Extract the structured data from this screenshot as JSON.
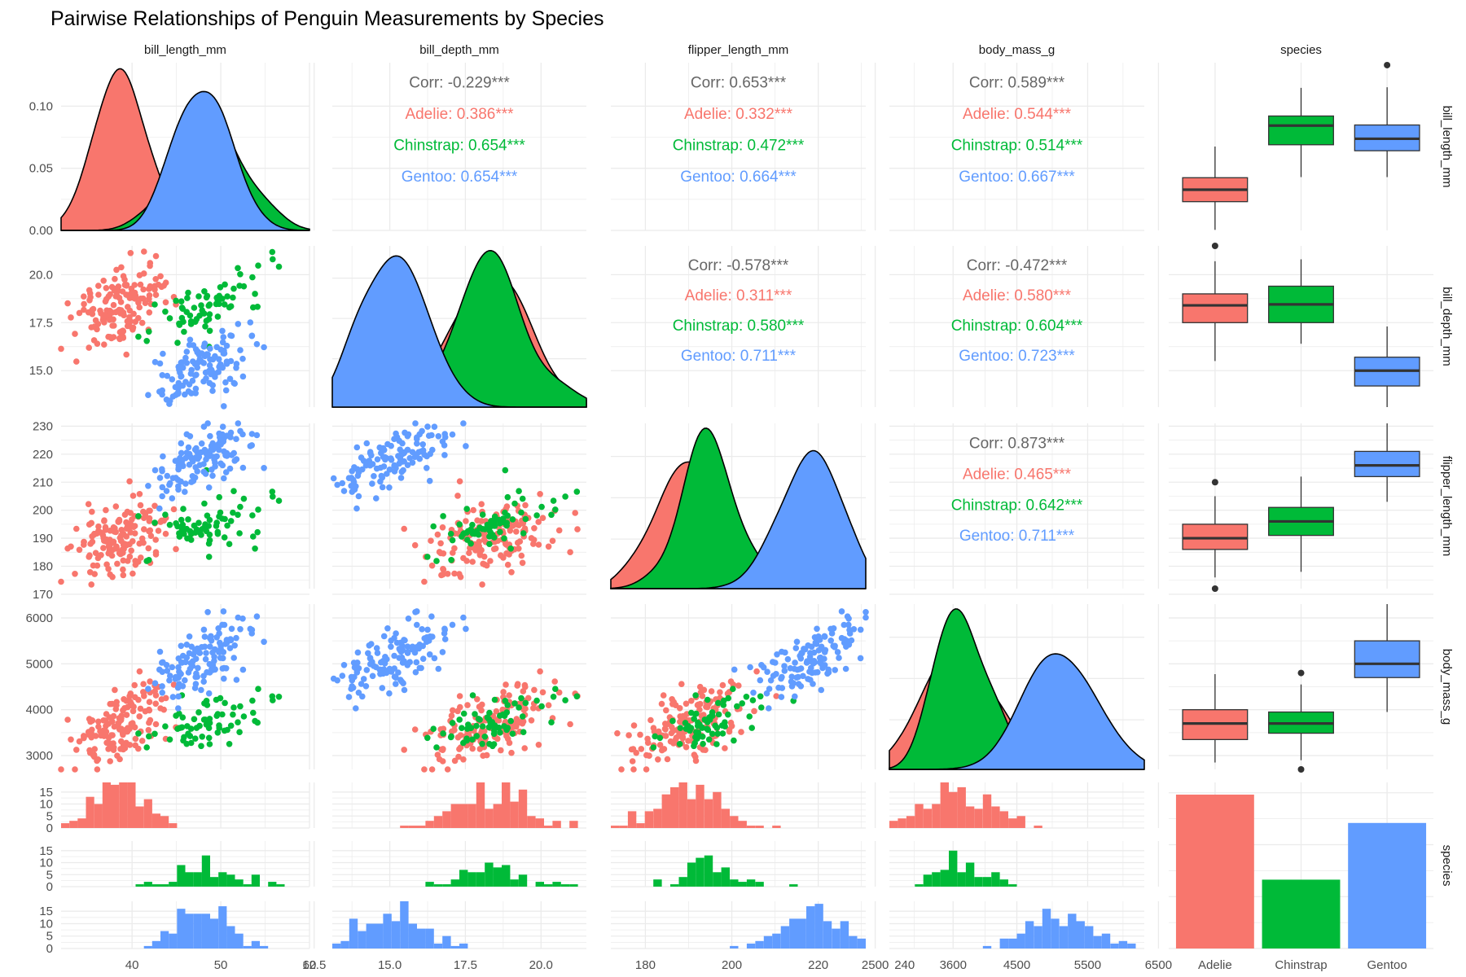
{
  "title": "Pairwise Relationships of Penguin Measurements by Species",
  "variables": [
    "bill_length_mm",
    "bill_depth_mm",
    "flipper_length_mm",
    "body_mass_g",
    "species"
  ],
  "species": [
    "Adelie",
    "Chinstrap",
    "Gentoo"
  ],
  "colors": {
    "Adelie": "#F8766D",
    "Chinstrap": "#00BA38",
    "Gentoo": "#619CFF"
  },
  "chart_data": {
    "type": "scatter",
    "title": "Pairwise Relationships of Penguin Measurements by Species",
    "panels": "pairs-matrix",
    "numeric_vars": [
      "bill_length_mm",
      "bill_depth_mm",
      "flipper_length_mm",
      "body_mass_g"
    ],
    "axis_ranges": {
      "bill_length_mm": [
        32,
        60
      ],
      "bill_depth_mm": [
        13.1,
        21.5
      ],
      "flipper_length_mm": [
        172,
        231
      ],
      "body_mass_g": [
        2700,
        6300
      ]
    },
    "diag_density_axis": {
      "ylim": [
        0,
        0.135
      ],
      "ticks": [
        0.0,
        0.05,
        0.1
      ],
      "tick_labels": [
        "0.00",
        "0.05",
        "0.10"
      ]
    },
    "left_ticks": {
      "bill_depth_mm": {
        "values": [
          15,
          17.5,
          20
        ],
        "labels": [
          "15.0",
          "17.5",
          "20.0"
        ]
      },
      "flipper_length_mm": {
        "values": [
          170,
          180,
          190,
          200,
          210,
          220,
          230
        ],
        "labels": [
          "170",
          "180",
          "190",
          "200",
          "210",
          "220",
          "230"
        ]
      },
      "body_mass_g": {
        "values": [
          3000,
          4000,
          5000,
          6000
        ],
        "labels": [
          "3000",
          "4000",
          "5000",
          "6000"
        ]
      }
    },
    "bottom_ticks": {
      "bill_length_mm": {
        "values": [
          40,
          50,
          60
        ],
        "labels": [
          "40",
          "50",
          "60"
        ]
      },
      "bill_depth_mm": {
        "values": [
          12.5,
          15,
          17.5,
          20
        ],
        "labels": [
          "12.5",
          "15.0",
          "17.5",
          "20.0"
        ]
      },
      "flipper_length_mm": {
        "values": [
          180,
          200,
          220,
          240
        ],
        "labels": [
          "180",
          "200",
          "220",
          "240"
        ]
      },
      "body_mass_g": {
        "values": [
          2500,
          3600,
          4500,
          5500,
          6500
        ],
        "labels": [
          "2500",
          "3600",
          "4500",
          "5500",
          "6500"
        ]
      }
    },
    "hist_ticks": {
      "values": [
        0,
        5,
        10,
        15
      ],
      "labels": [
        "0",
        "5",
        "10",
        "15"
      ]
    },
    "species_bar": {
      "categories": [
        "Adelie",
        "Chinstrap",
        "Gentoo"
      ],
      "values": [
        152,
        68,
        124
      ],
      "ylim": [
        0,
        160
      ]
    },
    "correlations": [
      {
        "row": "bill_length_mm",
        "col": "bill_depth_mm",
        "overall": "Corr: -0.229***",
        "Adelie": "Adelie: 0.386***",
        "Chinstrap": "Chinstrap: 0.654***",
        "Gentoo": "Gentoo: 0.654***"
      },
      {
        "row": "bill_length_mm",
        "col": "flipper_length_mm",
        "overall": "Corr: 0.653***",
        "Adelie": "Adelie: 0.332***",
        "Chinstrap": "Chinstrap: 0.472***",
        "Gentoo": "Gentoo: 0.664***"
      },
      {
        "row": "bill_length_mm",
        "col": "body_mass_g",
        "overall": "Corr: 0.589***",
        "Adelie": "Adelie: 0.544***",
        "Chinstrap": "Chinstrap: 0.514***",
        "Gentoo": "Gentoo: 0.667***"
      },
      {
        "row": "bill_depth_mm",
        "col": "flipper_length_mm",
        "overall": "Corr: -0.578***",
        "Adelie": "Adelie: 0.311***",
        "Chinstrap": "Chinstrap: 0.580***",
        "Gentoo": "Gentoo: 0.711***"
      },
      {
        "row": "bill_depth_mm",
        "col": "body_mass_g",
        "overall": "Corr: -0.472***",
        "Adelie": "Adelie: 0.580***",
        "Chinstrap": "Chinstrap: 0.604***",
        "Gentoo": "Gentoo: 0.723***"
      },
      {
        "row": "flipper_length_mm",
        "col": "body_mass_g",
        "overall": "Corr: 0.873***",
        "Adelie": "Adelie: 0.465***",
        "Chinstrap": "Chinstrap: 0.642***",
        "Gentoo": "Gentoo: 0.711***"
      }
    ],
    "boxplots": {
      "bill_length_mm": {
        "Adelie": {
          "min": 32.1,
          "q1": 36.8,
          "median": 38.8,
          "q3": 40.8,
          "max": 46.0,
          "outliers": []
        },
        "Chinstrap": {
          "min": 40.9,
          "q1": 46.3,
          "median": 49.5,
          "q3": 51.1,
          "max": 55.8,
          "outliers": []
        },
        "Gentoo": {
          "min": 40.9,
          "q1": 45.3,
          "median": 47.3,
          "q3": 49.6,
          "max": 55.9,
          "outliers": [
            59.6
          ]
        }
      },
      "bill_depth_mm": {
        "Adelie": {
          "min": 15.5,
          "q1": 17.5,
          "median": 18.4,
          "q3": 19.0,
          "max": 20.7,
          "outliers": [
            21.5
          ]
        },
        "Chinstrap": {
          "min": 16.4,
          "q1": 17.5,
          "median": 18.45,
          "q3": 19.4,
          "max": 20.8,
          "outliers": []
        },
        "Gentoo": {
          "min": 13.1,
          "q1": 14.2,
          "median": 15.0,
          "q3": 15.7,
          "max": 17.3,
          "outliers": []
        }
      },
      "flipper_length_mm": {
        "Adelie": {
          "min": 176,
          "q1": 186,
          "median": 190,
          "q3": 195,
          "max": 205,
          "outliers": [
            172,
            210
          ]
        },
        "Chinstrap": {
          "min": 178,
          "q1": 191,
          "median": 196,
          "q3": 201,
          "max": 212,
          "outliers": []
        },
        "Gentoo": {
          "min": 203,
          "q1": 212,
          "median": 216,
          "q3": 221,
          "max": 231,
          "outliers": []
        }
      },
      "body_mass_g": {
        "Adelie": {
          "min": 2850,
          "q1": 3350,
          "median": 3700,
          "q3": 4000,
          "max": 4775,
          "outliers": []
        },
        "Chinstrap": {
          "min": 2900,
          "q1": 3488,
          "median": 3700,
          "q3": 3950,
          "max": 4550,
          "outliers": [
            2700,
            4800
          ]
        },
        "Gentoo": {
          "min": 3950,
          "q1": 4700,
          "median": 5000,
          "q3": 5500,
          "max": 6300,
          "outliers": []
        }
      }
    },
    "species_stats": {
      "Adelie": {
        "bill_length_mm": [
          38.8,
          2.66
        ],
        "bill_depth_mm": [
          18.35,
          1.22
        ],
        "flipper_length_mm": [
          190,
          6.5
        ],
        "body_mass_g": [
          3700,
          458
        ]
      },
      "Chinstrap": {
        "bill_length_mm": [
          48.8,
          3.34
        ],
        "bill_depth_mm": [
          18.42,
          1.14
        ],
        "flipper_length_mm": [
          195.8,
          7.1
        ],
        "body_mass_g": [
          3733,
          384
        ]
      },
      "Gentoo": {
        "bill_length_mm": [
          47.5,
          3.08
        ],
        "bill_depth_mm": [
          14.98,
          0.98
        ],
        "flipper_length_mm": [
          217.2,
          6.5
        ],
        "body_mass_g": [
          5076,
          504
        ]
      }
    },
    "species_counts": {
      "Adelie": 152,
      "Chinstrap": 68,
      "Gentoo": 124
    },
    "correlation_values": {
      "Adelie": {
        "bill_length_mm|bill_depth_mm": 0.386,
        "bill_length_mm|flipper_length_mm": 0.332,
        "bill_length_mm|body_mass_g": 0.544,
        "bill_depth_mm|flipper_length_mm": 0.311,
        "bill_depth_mm|body_mass_g": 0.58,
        "flipper_length_mm|body_mass_g": 0.465
      },
      "Chinstrap": {
        "bill_length_mm|bill_depth_mm": 0.654,
        "bill_length_mm|flipper_length_mm": 0.472,
        "bill_length_mm|body_mass_g": 0.514,
        "bill_depth_mm|flipper_length_mm": 0.58,
        "bill_depth_mm|body_mass_g": 0.604,
        "flipper_length_mm|body_mass_g": 0.642
      },
      "Gentoo": {
        "bill_length_mm|bill_depth_mm": 0.654,
        "bill_length_mm|flipper_length_mm": 0.664,
        "bill_length_mm|body_mass_g": 0.667,
        "bill_depth_mm|flipper_length_mm": 0.711,
        "bill_depth_mm|body_mass_g": 0.723,
        "flipper_length_mm|body_mass_g": 0.711
      }
    },
    "grid": true,
    "legend": "none"
  }
}
